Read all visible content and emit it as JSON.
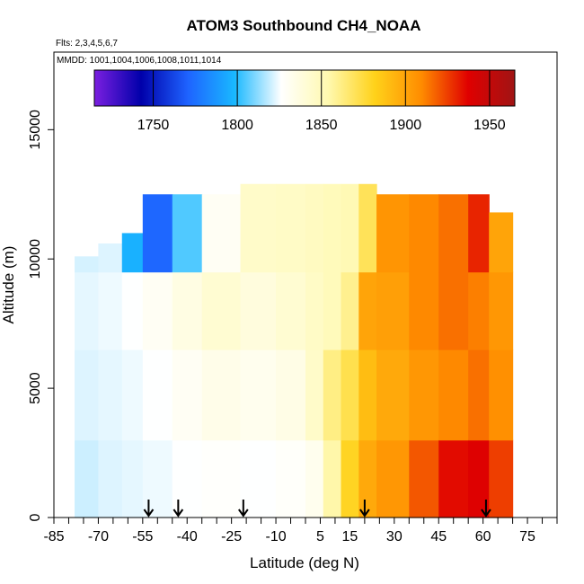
{
  "chart_data": {
    "type": "heatmap",
    "title": "ATOM3 Southbound CH4_NOAA",
    "flights_note": "Flts: 2,3,4,5,6,7",
    "dates_note": "MMDD: 1001,1004,1006,1008,1011,1014",
    "xlabel": "Latitude (deg N)",
    "ylabel": "Altitude (m)",
    "xlim": [
      -85,
      85
    ],
    "ylim": [
      0,
      18000
    ],
    "x_tick_labels": [
      "-85",
      "-70",
      "-55",
      "-40",
      "-25",
      "-10",
      "5",
      "15",
      "30",
      "45",
      "60",
      "75"
    ],
    "x_tick_values": [
      -85,
      -70,
      -55,
      -40,
      -25,
      -10,
      5,
      15,
      30,
      45,
      60,
      75
    ],
    "y_tick_labels": [
      "0",
      "5000",
      "10000",
      "15000"
    ],
    "y_tick_values": [
      0,
      5000,
      10000,
      15000
    ],
    "colorbar": {
      "range": [
        1715,
        1965
      ],
      "tick_labels": [
        "1750",
        "1800",
        "1850",
        "1900",
        "1950"
      ],
      "tick_values": [
        1750,
        1800,
        1850,
        1900,
        1950
      ],
      "colors": [
        "#7b1fe0",
        "#0000aa",
        "#1e63ff",
        "#19b8ff",
        "#ffffff",
        "#fff9b0",
        "#ffd21a",
        "#ff8c00",
        "#e00000",
        "#a01414"
      ]
    },
    "profile_latitudes": [
      -53,
      -43,
      -21,
      20,
      61
    ],
    "columns": [
      {
        "lat0": -78,
        "lat1": -70,
        "top": 10100,
        "values": [
          1820,
          1822,
          1823,
          1821
        ]
      },
      {
        "lat0": -70,
        "lat1": -62,
        "top": 10600,
        "values": [
          1822,
          1823,
          1824,
          1822
        ]
      },
      {
        "lat0": -62,
        "lat1": -55,
        "top": 11000,
        "values": [
          1823,
          1824,
          1826,
          1796
        ]
      },
      {
        "lat0": -55,
        "lat1": -45,
        "top": 12500,
        "values": [
          1824,
          1826,
          1830,
          1772
        ]
      },
      {
        "lat0": -45,
        "lat1": -35,
        "top": 12500,
        "values": [
          1826,
          1830,
          1836,
          1805
        ]
      },
      {
        "lat0": -35,
        "lat1": -22,
        "top": 12500,
        "values": [
          1827,
          1834,
          1842,
          1830
        ]
      },
      {
        "lat0": -22,
        "lat1": -10,
        "top": 12900,
        "values": [
          1826,
          1832,
          1838,
          1845
        ]
      },
      {
        "lat0": -10,
        "lat1": 0,
        "top": 12900,
        "values": [
          1828,
          1835,
          1842,
          1846
        ]
      },
      {
        "lat0": 0,
        "lat1": 6,
        "top": 12900,
        "values": [
          1832,
          1845,
          1846,
          1848
        ]
      },
      {
        "lat0": 6,
        "lat1": 12,
        "top": 12900,
        "values": [
          1855,
          1862,
          1850,
          1850
        ]
      },
      {
        "lat0": 12,
        "lat1": 18,
        "top": 12900,
        "values": [
          1880,
          1872,
          1860,
          1852
        ]
      },
      {
        "lat0": 18,
        "lat1": 24,
        "top": 12900,
        "values": [
          1898,
          1890,
          1900,
          1870
        ]
      },
      {
        "lat0": 24,
        "lat1": 35,
        "top": 12500,
        "values": [
          1905,
          1898,
          1902,
          1906
        ]
      },
      {
        "lat0": 35,
        "lat1": 45,
        "top": 12500,
        "values": [
          1920,
          1905,
          1910,
          1910
        ]
      },
      {
        "lat0": 45,
        "lat1": 55,
        "top": 12500,
        "values": [
          1935,
          1910,
          1915,
          1915
        ]
      },
      {
        "lat0": 55,
        "lat1": 62,
        "top": 12500,
        "values": [
          1938,
          1915,
          1912,
          1930
        ]
      },
      {
        "lat0": 62,
        "lat1": 70,
        "top": 11800,
        "values": [
          1925,
          1908,
          1905,
          1900
        ]
      }
    ],
    "altitude_bands": [
      0,
      3000,
      6500,
      9500
    ],
    "grid": false,
    "legend": "colorbar-top"
  }
}
